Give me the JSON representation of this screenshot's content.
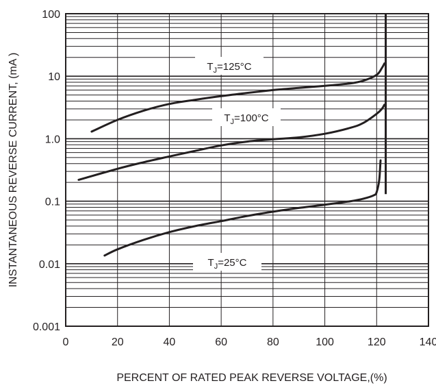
{
  "chart_data": {
    "type": "line",
    "xlabel": "PERCENT OF RATED PEAK REVERSE VOLTAGE,(%)",
    "ylabel": "INSTANTANEOUS REVERSE CURRENT, (mA )",
    "xlim": [
      0,
      140
    ],
    "ylim": [
      0.001,
      100
    ],
    "y_scale": "log",
    "grid": true,
    "x_ticks": [
      {
        "value": 0,
        "label": "0"
      },
      {
        "value": 20,
        "label": "20"
      },
      {
        "value": 40,
        "label": "40"
      },
      {
        "value": 60,
        "label": "60"
      },
      {
        "value": 80,
        "label": "80"
      },
      {
        "value": 100,
        "label": "100"
      },
      {
        "value": 120,
        "label": "120"
      },
      {
        "value": 140,
        "label": "140"
      }
    ],
    "y_ticks": [
      {
        "value": 100,
        "label": "100"
      },
      {
        "value": 10,
        "label": "10"
      },
      {
        "value": 1,
        "label": "1.0"
      },
      {
        "value": 0.1,
        "label": "0.1"
      },
      {
        "value": 0.01,
        "label": "0.01"
      },
      {
        "value": 0.001,
        "label": "0.001"
      }
    ],
    "series": [
      {
        "name_prefix": "T",
        "name_sub": "J",
        "name_suffix": "=125°C",
        "x": [
          10,
          20,
          30,
          40,
          50,
          60,
          70,
          80,
          90,
          100,
          110,
          115,
          120,
          122,
          123
        ],
        "y": [
          1.3,
          2.0,
          2.8,
          3.6,
          4.2,
          4.8,
          5.4,
          6.0,
          6.5,
          7.0,
          7.7,
          8.5,
          10.5,
          13.5,
          16
        ]
      },
      {
        "name_prefix": "T",
        "name_sub": "J",
        "name_suffix": "=100°C",
        "x": [
          5,
          20,
          30,
          40,
          50,
          60,
          70,
          80,
          90,
          100,
          110,
          115,
          120,
          122,
          123
        ],
        "y": [
          0.22,
          0.33,
          0.42,
          0.52,
          0.64,
          0.78,
          0.9,
          0.98,
          1.05,
          1.2,
          1.5,
          1.8,
          2.5,
          3.0,
          3.5
        ]
      },
      {
        "name_prefix": "T",
        "name_sub": "J",
        "name_suffix": "=25°C",
        "x": [
          15,
          20,
          30,
          40,
          50,
          60,
          70,
          80,
          90,
          100,
          110,
          115,
          119,
          120,
          121,
          121.5
        ],
        "y": [
          0.0135,
          0.017,
          0.024,
          0.032,
          0.04,
          0.048,
          0.058,
          0.068,
          0.078,
          0.088,
          0.1,
          0.11,
          0.125,
          0.14,
          0.22,
          0.45
        ]
      }
    ],
    "breakdown_line": {
      "x": 123.5,
      "y": [
        0.13,
        100
      ]
    }
  },
  "colors": {
    "line": "#231f20",
    "grid": "#231f20",
    "text": "#231f20",
    "background": "#ffffff"
  }
}
